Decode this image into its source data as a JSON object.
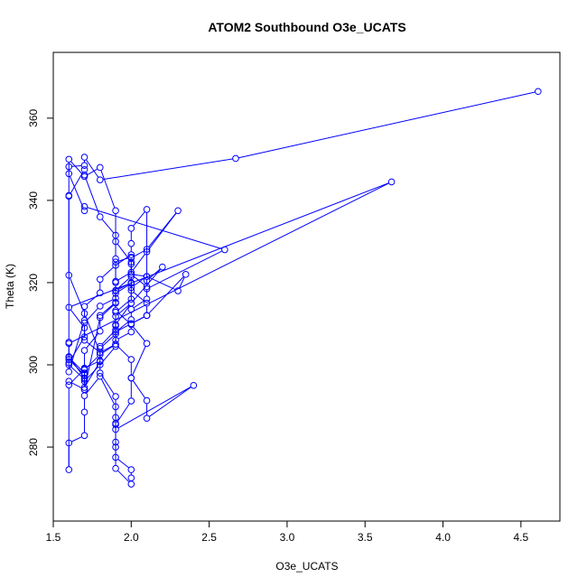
{
  "chart_data": {
    "type": "line",
    "title": "ATOM2 Southbound O3e_UCATS",
    "xlabel": "O3e_UCATS",
    "ylabel": "Theta (K)",
    "xlim": [
      1.5,
      4.75
    ],
    "ylim": [
      262,
      376
    ],
    "xticks": [
      1.5,
      2.0,
      2.5,
      3.0,
      3.5,
      4.0,
      4.5
    ],
    "xtick_labels": [
      "1.5",
      "2.0",
      "2.5",
      "3.0",
      "3.5",
      "4.0",
      "4.5"
    ],
    "yticks": [
      280,
      300,
      320,
      340,
      360
    ],
    "ytick_labels": [
      "280",
      "300",
      "320",
      "340",
      "360"
    ],
    "grid": false,
    "series": [
      {
        "color": "#0000ff",
        "marker": "open-circle",
        "x": [
          4.61,
          2.67,
          1.8,
          1.7,
          1.7,
          1.6,
          1.6,
          1.6,
          1.7,
          1.8,
          1.8,
          1.9,
          1.9,
          1.9,
          1.9,
          2.0,
          2.0,
          2.0,
          1.9,
          1.9,
          1.9,
          2.0,
          2.0,
          2.1,
          2.0,
          1.9,
          1.9,
          2.0,
          2.0,
          1.9,
          1.9,
          2.0,
          2.0,
          2.1,
          2.1,
          2.4,
          1.9,
          1.9,
          1.9,
          1.8,
          1.7,
          1.7,
          1.7,
          1.6,
          1.6,
          1.6,
          1.7,
          1.7,
          1.8,
          1.8,
          1.9,
          1.9,
          2.0,
          2.0,
          2.0,
          2.1,
          2.3,
          2.1,
          2.0,
          1.9,
          1.9,
          1.9,
          1.8,
          1.7,
          1.7,
          1.6,
          1.6,
          1.6,
          1.7,
          1.7,
          1.8,
          1.9,
          1.9,
          1.9,
          2.0,
          2.0,
          2.0,
          2.1,
          2.1,
          2.0,
          2.0,
          1.9,
          1.9,
          1.9,
          1.8,
          1.7,
          1.7,
          1.6,
          1.6,
          1.7,
          1.7,
          1.8,
          1.8,
          1.9,
          2.0,
          2.0,
          2.0,
          2.1,
          2.1,
          2.2,
          2.0,
          1.9,
          1.9,
          1.8,
          1.8,
          1.7,
          1.7,
          1.6,
          1.6,
          1.7,
          1.7,
          1.8,
          1.9,
          1.9,
          2.0,
          2.0,
          2.1,
          2.1,
          2.0,
          2.0,
          1.9,
          1.9,
          1.8,
          1.7,
          1.7,
          1.6,
          3.67,
          1.6,
          1.6,
          1.7,
          1.7,
          1.8,
          1.8,
          1.9,
          1.9,
          2.0,
          2.0,
          2.1,
          2.1,
          2.6,
          1.7,
          1.7,
          1.6,
          1.6,
          1.7,
          1.8,
          1.9,
          1.9,
          2.0,
          2.0,
          2.1,
          2.3,
          2.35,
          2.1,
          2.0,
          1.9,
          1.9,
          1.8,
          1.7,
          1.7,
          1.6
        ],
        "y": [
          366.5,
          350.2,
          345.0,
          350.5,
          348.5,
          348.2,
          341.2,
          321.8,
          312.5,
          303.0,
          298.0,
          292.3,
          285.8,
          281.2,
          277.5,
          274.5,
          272.5,
          271.0,
          274.8,
          280.0,
          285.5,
          291.2,
          296.8,
          305.2,
          309.8,
          313.2,
          317.4,
          319.8,
          315.0,
          309.8,
          305.0,
          301.3,
          296.8,
          291.3,
          287.0,
          295.0,
          284.3,
          287.2,
          289.8,
          297.2,
          292.5,
          288.5,
          282.8,
          281.0,
          274.5,
          295.1,
          299.0,
          303.5,
          308.2,
          312.0,
          315.2,
          318.1,
          321.5,
          324.5,
          326.0,
          328.1,
          337.5,
          327.5,
          322.5,
          320.3,
          325.8,
          331.5,
          336.0,
          346.2,
          347.5,
          341.0,
          305.5,
          300.5,
          306.8,
          310.2,
          314.3,
          316.2,
          320.0,
          325.0,
          326.2,
          322.0,
          318.1,
          315.0,
          312.0,
          310.0,
          308.0,
          306.0,
          309.5,
          305.0,
          302.5,
          298.8,
          296.8,
          302.0,
          298.3,
          310.8,
          314.2,
          317.5,
          320.8,
          324.2,
          326.8,
          329.5,
          333.2,
          337.8,
          320.5,
          323.8,
          315.0,
          311.8,
          307.5,
          304.0,
          301.0,
          299.2,
          296.5,
          300.0,
          301.3,
          297.5,
          294.0,
          311.5,
          315.0,
          318.0,
          320.0,
          322.0,
          319.0,
          316.0,
          313.5,
          311.0,
          308.0,
          305.0,
          303.0,
          306.0,
          309.0,
          314.0,
          344.5,
          305.2,
          301.8,
          298.0,
          294.5,
          300.8,
          304.5,
          308.5,
          312.8,
          316.0,
          318.8,
          321.5,
          318.5,
          328.0,
          338.5,
          337.5,
          346.5,
          350.0,
          345.8,
          348.0,
          337.5,
          330.0,
          325.0,
          322.0,
          321.5,
          318.0,
          322.0,
          312.0,
          310.0,
          308.0,
          304.5,
          300.0,
          296.0,
          294.0,
          296.0
        ]
      }
    ]
  }
}
